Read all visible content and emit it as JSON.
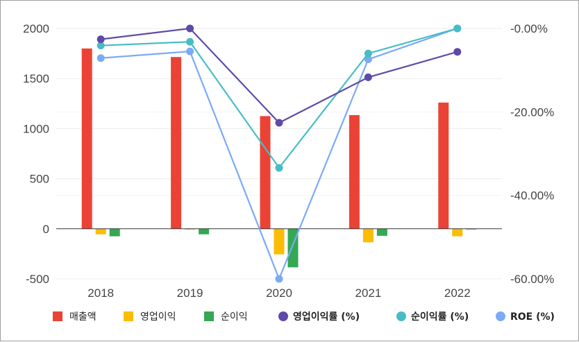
{
  "chart_data": {
    "type": "bar",
    "categories": [
      "2018",
      "2019",
      "2020",
      "2021",
      "2022"
    ],
    "bar_series": [
      {
        "name": "매출액",
        "color": "#ea4335",
        "values": [
          1800,
          1715,
          1125,
          1135,
          1260
        ]
      },
      {
        "name": "영업이익",
        "color": "#fbbc04",
        "values": [
          -55,
          -8,
          -255,
          -135,
          -75
        ]
      },
      {
        "name": "순이익",
        "color": "#34a853",
        "values": [
          -75,
          -55,
          -385,
          -70,
          -5
        ]
      }
    ],
    "line_series": [
      {
        "name": "영업이익률 (%)",
        "color": "#5e4aa9",
        "values": [
          -2.6,
          0.0,
          -22.6,
          -11.7,
          -5.6
        ]
      },
      {
        "name": "순이익률 (%)",
        "color": "#46bdc6",
        "values": [
          -4.1,
          -3.2,
          -33.4,
          -6.0,
          0.0
        ]
      },
      {
        "name": "ROE (%)",
        "color": "#7baaf7",
        "values": [
          -7.1,
          -5.5,
          -60.0,
          -7.4,
          0.0
        ]
      }
    ],
    "y_left": {
      "range": [
        -500,
        2000
      ],
      "ticks": [
        "2000",
        "1500",
        "1000",
        "500",
        "0",
        "-500"
      ]
    },
    "y_right": {
      "range": [
        -60,
        0
      ],
      "ticks": [
        "-0.00%",
        "-20.00%",
        "-40.00%",
        "-60.00%"
      ]
    },
    "grid": true,
    "legend_position": "bottom"
  }
}
